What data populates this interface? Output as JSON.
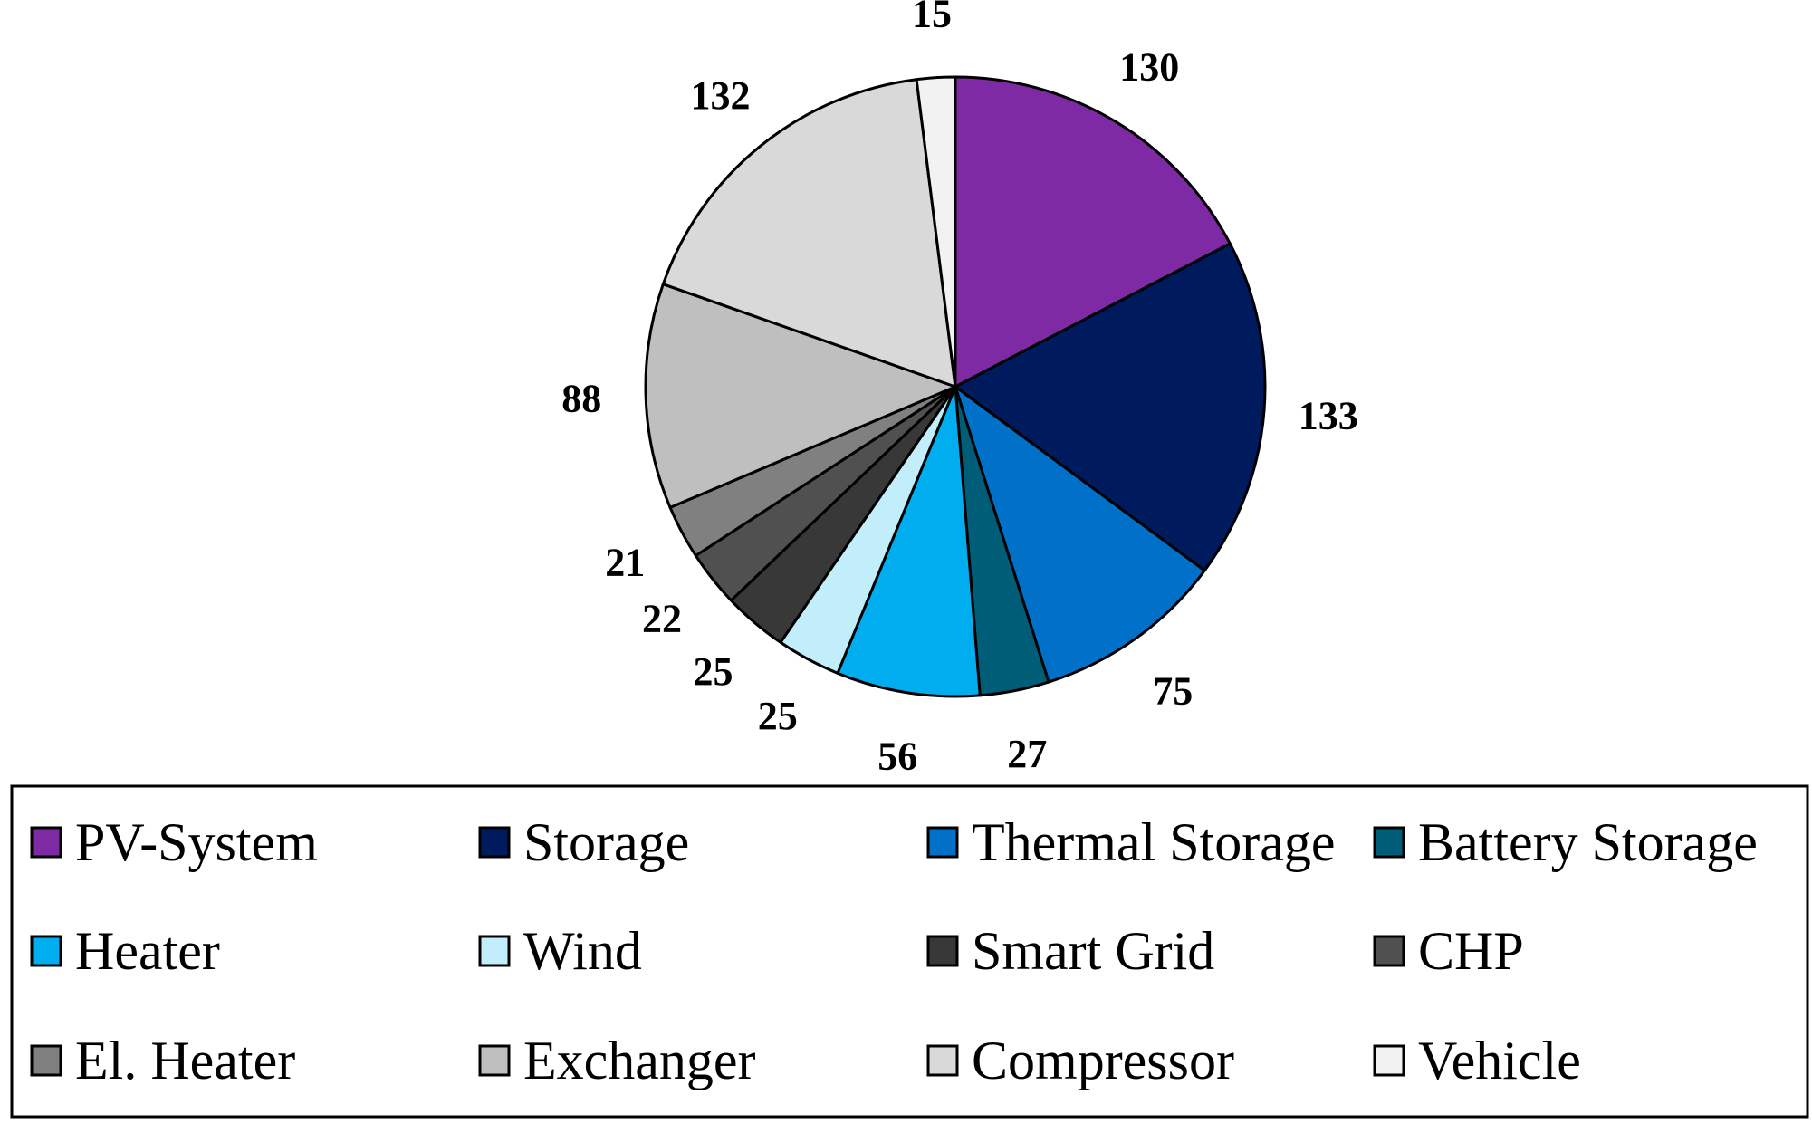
{
  "chart_data": {
    "type": "pie",
    "title": "",
    "legend_position": "bottom",
    "slices": [
      {
        "label": "PV-System",
        "value": 130,
        "color": "#7F2AA5"
      },
      {
        "label": "Storage",
        "value": 133,
        "color": "#001A5E"
      },
      {
        "label": "Thermal Storage",
        "value": 75,
        "color": "#0070C9"
      },
      {
        "label": "Battery Storage",
        "value": 27,
        "color": "#005D78"
      },
      {
        "label": "Heater",
        "value": 56,
        "color": "#00AEEF"
      },
      {
        "label": "Wind",
        "value": 25,
        "color": "#C2EEFB"
      },
      {
        "label": "Smart Grid",
        "value": 25,
        "color": "#383838"
      },
      {
        "label": "CHP",
        "value": 22,
        "color": "#505050"
      },
      {
        "label": "El. Heater",
        "value": 21,
        "color": "#808080"
      },
      {
        "label": "Exchanger",
        "value": 88,
        "color": "#BFBFBF"
      },
      {
        "label": "Compressor",
        "value": 132,
        "color": "#D9D9D9"
      },
      {
        "label": "Vehicle",
        "value": 15,
        "color": "#F2F2F2"
      }
    ]
  }
}
